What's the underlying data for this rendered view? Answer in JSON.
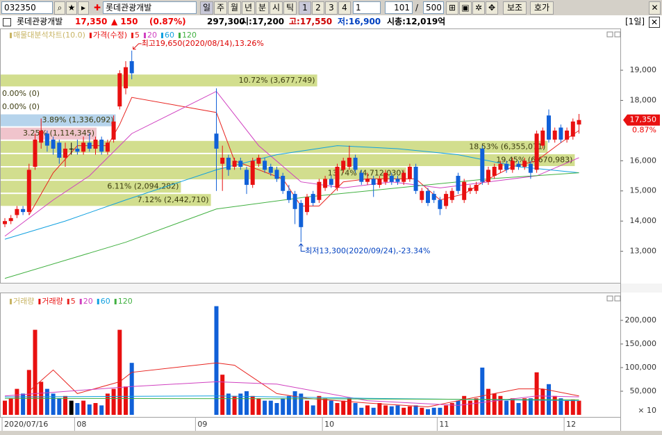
{
  "toolbar": {
    "code": "032350",
    "name": "롯데관광개발",
    "periods": [
      "일",
      "주",
      "월",
      "년",
      "분",
      "시",
      "틱"
    ],
    "numbers": [
      "1",
      "2",
      "3",
      "4"
    ],
    "interval": "1",
    "count": "101",
    "max": "500",
    "buttons": [
      "보조",
      "호가"
    ]
  },
  "quote": {
    "name": "롯데관광개발",
    "price": "17,350",
    "change": "▲ 150",
    "rate": "(0.87%)",
    "volume": "297,300",
    "open": "시:17,200",
    "high": "고:17,550",
    "low": "저:16,900",
    "cap": "시총:12,019억",
    "period": "[1일]"
  },
  "chart_data": [
    {
      "type": "candlestick",
      "profile_name": "매물대분석차트(10.0)",
      "price_name": "가격(수정)",
      "categories": [
        "2020/07/16",
        null,
        null,
        null,
        null,
        null,
        null,
        null,
        null,
        null,
        null,
        null,
        "08",
        null,
        null,
        null,
        null,
        null,
        null,
        null,
        null,
        null,
        null,
        null,
        null,
        null,
        null,
        null,
        null,
        null,
        null,
        null,
        "09",
        null,
        null,
        null,
        null,
        null,
        null,
        null,
        null,
        null,
        null,
        null,
        null,
        null,
        null,
        null,
        null,
        null,
        null,
        null,
        null,
        "10",
        null,
        null,
        null,
        null,
        null,
        null,
        null,
        null,
        null,
        null,
        null,
        null,
        null,
        null,
        null,
        null,
        null,
        null,
        "11",
        null,
        null,
        null,
        null,
        null,
        null,
        null,
        null,
        null,
        null,
        null,
        null,
        null,
        null,
        null,
        null,
        null,
        null,
        null,
        null,
        "12",
        null,
        null
      ],
      "open": [
        13900,
        14000,
        14200,
        14400,
        14300,
        15800,
        16600,
        16900,
        16700,
        16600,
        16100,
        16400,
        16400,
        16300,
        16600,
        16400,
        16700,
        16300,
        16700,
        17800,
        18400,
        19300,
        null,
        null,
        null,
        null,
        null,
        null,
        null,
        null,
        null,
        null,
        null,
        null,
        null,
        16900,
        15900,
        16100,
        15800,
        16000,
        15700,
        15200,
        15900,
        16000,
        15800,
        15700,
        15500,
        15000,
        14900,
        14600,
        14300,
        14900,
        14700,
        15100,
        15400,
        15100,
        15700,
        15800,
        16100,
        15600,
        15300,
        15400,
        15200,
        15300,
        15500,
        15400,
        15300,
        15400,
        15800,
        14700,
        15000,
        14900,
        14700,
        14500,
        14700,
        15500,
        14700,
        15000,
        15000,
        16400,
        15300,
        15500,
        15700,
        15900,
        15700,
        15900,
        15800,
        15900,
        15700,
        16500,
        17500,
        16700,
        17100,
        16700,
        16800,
        17200
      ],
      "high": [
        14100,
        14200,
        14500,
        14500,
        15900,
        16900,
        17400,
        17000,
        16800,
        16700,
        16600,
        16600,
        16700,
        16800,
        16900,
        16800,
        16800,
        16700,
        17500,
        19000,
        19300,
        19650,
        null,
        null,
        null,
        null,
        null,
        null,
        null,
        null,
        null,
        null,
        null,
        null,
        null,
        18400,
        16500,
        16200,
        16100,
        16100,
        15800,
        16100,
        16200,
        16100,
        15900,
        15800,
        15600,
        15200,
        15000,
        14700,
        14900,
        15000,
        15400,
        15500,
        15500,
        15900,
        16100,
        16500,
        16200,
        15700,
        15600,
        15500,
        15500,
        15700,
        15600,
        15500,
        15700,
        15900,
        15900,
        15100,
        15100,
        15000,
        14800,
        15000,
        15100,
        15600,
        15400,
        15200,
        15300,
        16500,
        15800,
        15900,
        16000,
        16000,
        16100,
        16000,
        16100,
        16000,
        17000,
        17100,
        17700,
        17100,
        17200,
        17100,
        17400,
        17550
      ],
      "low": [
        13800,
        13900,
        14100,
        14200,
        14200,
        15700,
        16400,
        16300,
        16200,
        15900,
        15800,
        16200,
        16200,
        16200,
        16300,
        16200,
        16200,
        16200,
        16600,
        17700,
        18200,
        18700,
        null,
        null,
        null,
        null,
        null,
        null,
        null,
        null,
        null,
        null,
        null,
        null,
        null,
        15000,
        15000,
        15500,
        15700,
        15700,
        14900,
        15100,
        15800,
        15600,
        15500,
        15300,
        14900,
        14600,
        13900,
        13300,
        14200,
        14500,
        14600,
        15000,
        15100,
        15000,
        15600,
        15700,
        15600,
        15200,
        15200,
        14800,
        15100,
        15200,
        15200,
        15200,
        15200,
        15300,
        14900,
        14600,
        14500,
        14600,
        14200,
        14400,
        14600,
        14900,
        14600,
        14900,
        14900,
        15200,
        15200,
        15400,
        15600,
        15600,
        15600,
        15700,
        15700,
        15400,
        15600,
        16400,
        16600,
        16600,
        16600,
        16600,
        16700,
        16900
      ],
      "close": [
        14000,
        14100,
        14400,
        14300,
        15700,
        16700,
        17000,
        16500,
        16400,
        16100,
        16400,
        16400,
        16300,
        16600,
        16400,
        16700,
        16300,
        16600,
        17300,
        18900,
        19100,
        18900,
        null,
        null,
        null,
        null,
        null,
        null,
        null,
        null,
        null,
        null,
        null,
        null,
        null,
        16400,
        16100,
        15700,
        16000,
        15800,
        15200,
        16000,
        16100,
        15700,
        15600,
        15400,
        15000,
        14700,
        14400,
        13800,
        14800,
        14600,
        15300,
        15400,
        15200,
        15800,
        16000,
        16100,
        15700,
        15300,
        15400,
        15200,
        15400,
        15600,
        15300,
        15300,
        15600,
        15800,
        15000,
        15000,
        14600,
        14700,
        14400,
        14900,
        15000,
        15000,
        15300,
        15100,
        15200,
        15300,
        15700,
        15800,
        15900,
        15700,
        16000,
        15800,
        16000,
        15600,
        16900,
        17000,
        16700,
        17000,
        16700,
        17000,
        17300,
        17350
      ],
      "up_color": "#e81010",
      "down_color": "#1060d8",
      "series": [
        {
          "name": "5",
          "color": "#e8231f",
          "x": [
            4,
            8,
            12,
            17,
            19,
            21,
            35,
            38,
            42,
            46,
            49,
            52,
            56,
            60,
            64,
            68,
            72,
            76,
            80,
            84,
            88,
            92,
            95
          ],
          "values": [
            14200,
            15600,
            16500,
            16500,
            17200,
            18100,
            17600,
            16000,
            15700,
            15400,
            14500,
            14500,
            15300,
            15400,
            15400,
            15400,
            14700,
            14900,
            15400,
            15800,
            16000,
            16600,
            17000
          ]
        },
        {
          "name": "20",
          "color": "#d040c0",
          "x": [
            0,
            8,
            14,
            21,
            35,
            42,
            49,
            56,
            64,
            72,
            80,
            88,
            95
          ],
          "values": [
            13500,
            14700,
            15500,
            16900,
            18300,
            16500,
            15300,
            15100,
            15300,
            15100,
            15300,
            15500,
            16100
          ]
        },
        {
          "name": "60",
          "color": "#10a0e0",
          "x": [
            0,
            10,
            20,
            35,
            45,
            55,
            65,
            75,
            85,
            95
          ],
          "values": [
            13400,
            14000,
            14700,
            15700,
            16200,
            16500,
            16400,
            16200,
            15800,
            15600
          ]
        },
        {
          "name": "120",
          "color": "#40b040",
          "x": [
            0,
            20,
            35,
            50,
            65,
            80,
            95
          ],
          "values": [
            12100,
            13300,
            14400,
            14800,
            15100,
            15400,
            15600
          ]
        }
      ],
      "bands": [
        {
          "low": 18440,
          "high": 18880,
          "volume": 3677749,
          "label": "10.72% (3,677,749)",
          "color": "#d2de8e"
        },
        {
          "low": 18000,
          "high": 18440,
          "volume": 0,
          "label": "0.00% (0)",
          "color": "#d2de8e"
        },
        {
          "low": 17560,
          "high": 18000,
          "volume": 0,
          "label": "0.00% (0)",
          "color": "#d2de8e"
        },
        {
          "low": 17120,
          "high": 17560,
          "volume": 1336092,
          "label": "3.89% (1,336,092)",
          "color": "#b6d4ec"
        },
        {
          "low": 16680,
          "high": 17120,
          "volume": 1114345,
          "label": "3.25% (1,114,345)",
          "color": "#f0c4cc"
        },
        {
          "low": 16240,
          "high": 16680,
          "volume": 6355071,
          "label": "18.53% (6,355,071)",
          "color": "#d2de8e"
        },
        {
          "low": 15800,
          "high": 16240,
          "volume": 6670983,
          "label": "19.45% (6,670,983)",
          "color": "#d2de8e"
        },
        {
          "low": 15360,
          "high": 15800,
          "volume": 4712030,
          "label": "13.74% (4,712,030)",
          "color": "#d2de8e"
        },
        {
          "low": 14920,
          "high": 15360,
          "volume": 2094282,
          "label": "6.11% (2,094,282)",
          "color": "#d2de8e"
        },
        {
          "low": 14480,
          "high": 14920,
          "volume": 2442710,
          "label": "7.12% (2,442,710)",
          "color": "#d2de8e"
        }
      ],
      "high_note": "최고19,650(2020/08/14),13.26%",
      "low_note": "최저13,300(2020/09/24),-23.34%",
      "last_label": "17,350",
      "last_rate": "0.87%",
      "ylim": [
        12000,
        20360
      ],
      "yticks": [
        {
          "value": 13000,
          "label": "13,000"
        },
        {
          "value": 14000,
          "label": "14,000"
        },
        {
          "value": 15000,
          "label": "15,000"
        },
        {
          "value": 16000,
          "label": "16,000"
        },
        {
          "value": 18000,
          "label": "18,000"
        },
        {
          "value": 19000,
          "label": "19,000"
        }
      ]
    },
    {
      "type": "bar",
      "indicator": "거래량",
      "name": "거래량",
      "unit": "× 10",
      "values": [
        30000,
        35000,
        55000,
        45000,
        95000,
        180000,
        70000,
        55000,
        45000,
        35000,
        40000,
        30000,
        25000,
        30000,
        22000,
        25000,
        20000,
        45000,
        55000,
        180000,
        60000,
        110000,
        null,
        null,
        null,
        null,
        null,
        null,
        null,
        null,
        null,
        null,
        null,
        null,
        null,
        230000,
        85000,
        45000,
        40000,
        45000,
        50000,
        40000,
        35000,
        30000,
        30000,
        25000,
        35000,
        40000,
        50000,
        45000,
        30000,
        20000,
        40000,
        35000,
        30000,
        25000,
        30000,
        35000,
        25000,
        15000,
        20000,
        15000,
        25000,
        20000,
        18000,
        20000,
        15000,
        18000,
        20000,
        15000,
        12000,
        15000,
        15000,
        20000,
        25000,
        30000,
        40000,
        30000,
        35000,
        100000,
        55000,
        45000,
        40000,
        30000,
        35000,
        25000,
        35000,
        35000,
        90000,
        55000,
        65000,
        40000,
        35000,
        30000,
        32000,
        30000
      ],
      "series": [
        {
          "name": "5",
          "color": "#e8231f",
          "x": [
            4,
            8,
            12,
            19,
            21,
            35,
            38,
            45,
            50,
            60,
            70,
            79,
            85,
            89,
            95
          ],
          "values": [
            50000,
            95000,
            45000,
            70000,
            90000,
            110000,
            105000,
            45000,
            35000,
            25000,
            17000,
            40000,
            55000,
            55000,
            40000
          ]
        },
        {
          "name": "20",
          "color": "#d040c0",
          "x": [
            0,
            21,
            35,
            45,
            60,
            75,
            88,
            95
          ],
          "values": [
            40000,
            60000,
            70000,
            65000,
            30000,
            20000,
            40000,
            38000
          ]
        },
        {
          "name": "60",
          "color": "#10a0e0",
          "x": [
            0,
            35,
            60,
            95
          ],
          "values": [
            38000,
            40000,
            35000,
            30000
          ]
        },
        {
          "name": "120",
          "color": "#40b040",
          "x": [
            0,
            50,
            95
          ],
          "values": [
            35000,
            34000,
            32000
          ]
        }
      ],
      "ylim": [
        0,
        250000
      ],
      "yticks": [
        {
          "value": 50000,
          "label": "50,000"
        },
        {
          "value": 100000,
          "label": "100,000"
        },
        {
          "value": 150000,
          "label": "150,000"
        },
        {
          "value": 200000,
          "label": "200,000"
        }
      ]
    }
  ]
}
